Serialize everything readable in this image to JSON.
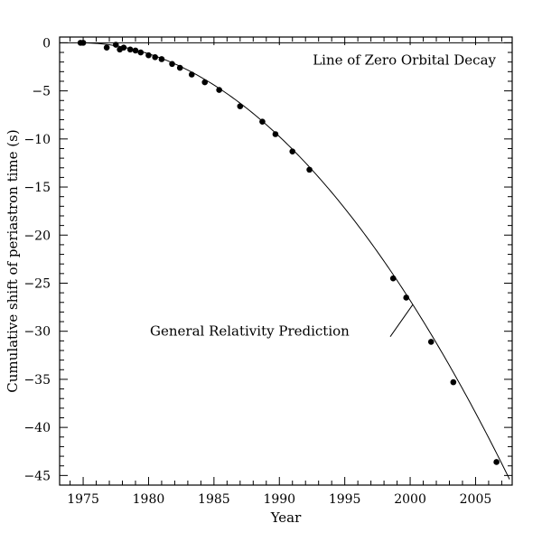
{
  "chart_data": {
    "type": "scatter",
    "title": "",
    "xlabel": "Year",
    "ylabel": "Cumulative shift of periastron time (s)",
    "xlim": [
      1973.2,
      2007.8
    ],
    "ylim": [
      -46.0,
      0.6
    ],
    "x_ticks": [
      1975,
      1980,
      1985,
      1990,
      1995,
      2000,
      2005
    ],
    "y_ticks": [
      0,
      -5,
      -10,
      -15,
      -20,
      -25,
      -30,
      -35,
      -40,
      -45
    ],
    "grid": false,
    "series": [
      {
        "points": [
          [
            1974.8,
            0.0
          ],
          [
            1975.0,
            0.0
          ],
          [
            1976.8,
            -0.5
          ],
          [
            1977.5,
            -0.2
          ],
          [
            1977.8,
            -0.7
          ],
          [
            1978.1,
            -0.5
          ],
          [
            1978.6,
            -0.7
          ],
          [
            1979.0,
            -0.8
          ],
          [
            1979.4,
            -1.0
          ],
          [
            1980.0,
            -1.3
          ],
          [
            1980.5,
            -1.5
          ],
          [
            1981.0,
            -1.7
          ],
          [
            1981.8,
            -2.2
          ],
          [
            1982.4,
            -2.6
          ],
          [
            1983.3,
            -3.3
          ],
          [
            1984.3,
            -4.1
          ],
          [
            1985.4,
            -4.9
          ],
          [
            1987.0,
            -6.6
          ],
          [
            1988.7,
            -8.2
          ],
          [
            1989.7,
            -9.5
          ],
          [
            1991.0,
            -11.3
          ],
          [
            1992.3,
            -13.2
          ],
          [
            1998.7,
            -24.5
          ],
          [
            1999.7,
            -26.5
          ],
          [
            2001.6,
            -31.1
          ],
          [
            2003.3,
            -35.3
          ],
          [
            2006.6,
            -43.6
          ]
        ]
      }
    ],
    "reference_line": {
      "label": "Line of Zero Orbital Decay",
      "y": 0
    },
    "model_curve": {
      "label": "General Relativity Prediction",
      "start_year": 1974.8,
      "end_year": 2007.6,
      "coefficient": 0.0422
    }
  }
}
